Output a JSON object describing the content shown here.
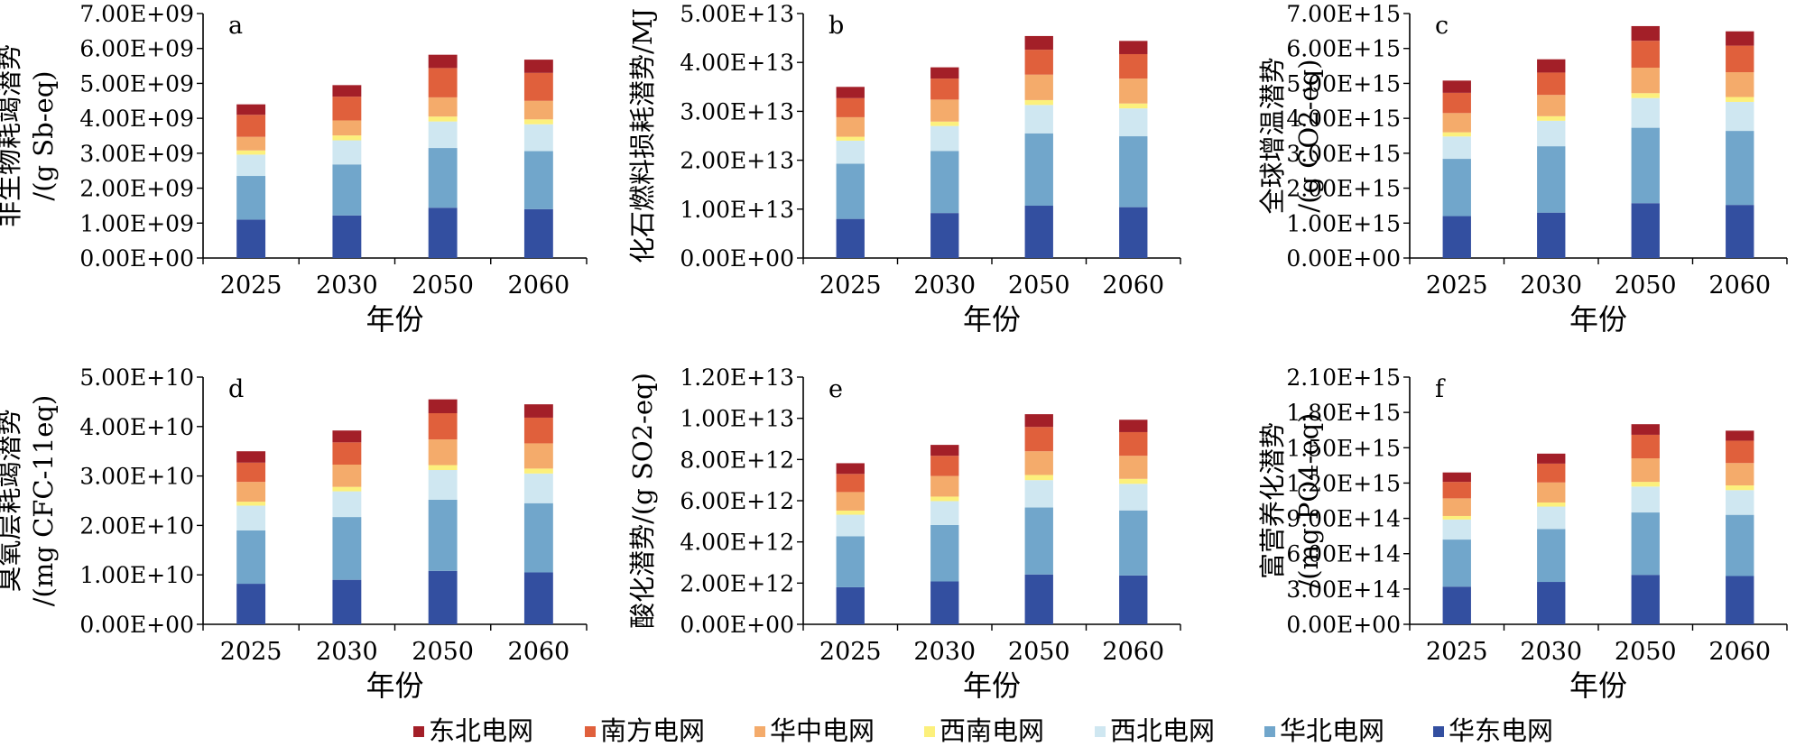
{
  "figure": {
    "x_label": "年份"
  },
  "legend": {
    "items": [
      {
        "name": "东北电网",
        "color": "#a31f28"
      },
      {
        "name": "南方电网",
        "color": "#e0603c"
      },
      {
        "name": "华中电网",
        "color": "#f4ab6b"
      },
      {
        "name": "西南电网",
        "color": "#fcf07c"
      },
      {
        "name": "西北电网",
        "color": "#cfe7f1"
      },
      {
        "name": "华北电网",
        "color": "#71a6cb"
      },
      {
        "name": "华东电网",
        "color": "#334fa0"
      }
    ]
  },
  "chart_data": [
    {
      "type": "bar",
      "stacked": true,
      "panel": "a",
      "title": "",
      "xlabel": "年份",
      "ylabel_lines": [
        "非生物耗竭潜势",
        "/(g Sb-eq)"
      ],
      "categories": [
        "2025",
        "2030",
        "2050",
        "2060"
      ],
      "ylim": [
        0,
        7000000000.0
      ],
      "ytick_labels": [
        "0.00E+00",
        "1.00E+09",
        "2.00E+09",
        "3.00E+09",
        "4.00E+09",
        "5.00E+09",
        "6.00E+09",
        "7.00E+09"
      ],
      "series": [
        {
          "name": "华东电网",
          "values": [
            1100000000.0,
            1220000000.0,
            1440000000.0,
            1400000000.0
          ]
        },
        {
          "name": "华北电网",
          "values": [
            1250000000.0,
            1460000000.0,
            1710000000.0,
            1660000000.0
          ]
        },
        {
          "name": "西北电网",
          "values": [
            610000000.0,
            690000000.0,
            760000000.0,
            770000000.0
          ]
        },
        {
          "name": "西南电网",
          "values": [
            120000000.0,
            140000000.0,
            140000000.0,
            140000000.0
          ]
        },
        {
          "name": "华中电网",
          "values": [
            390000000.0,
            430000000.0,
            550000000.0,
            530000000.0
          ]
        },
        {
          "name": "南方电网",
          "values": [
            630000000.0,
            680000000.0,
            840000000.0,
            800000000.0
          ]
        },
        {
          "name": "东北电网",
          "values": [
            300000000.0,
            330000000.0,
            380000000.0,
            380000000.0
          ]
        }
      ]
    },
    {
      "type": "bar",
      "stacked": true,
      "panel": "b",
      "title": "",
      "xlabel": "年份",
      "ylabel_lines": [
        "化石燃料损耗潜势/MJ"
      ],
      "categories": [
        "2025",
        "2030",
        "2050",
        "2060"
      ],
      "ylim": [
        0,
        50000000000000.0
      ],
      "ytick_labels": [
        "0.00E+00",
        "1.00E+13",
        "2.00E+13",
        "3.00E+13",
        "4.00E+13",
        "5.00E+13"
      ],
      "series": [
        {
          "name": "华东电网",
          "values": [
            8000000000000.0,
            9200000000000.0,
            10700000000000.0,
            10400000000000.0
          ]
        },
        {
          "name": "华北电网",
          "values": [
            11300000000000.0,
            12700000000000.0,
            14800000000000.0,
            14500000000000.0
          ]
        },
        {
          "name": "西北电网",
          "values": [
            4700000000000.0,
            5100000000000.0,
            5800000000000.0,
            5700000000000.0
          ]
        },
        {
          "name": "西南电网",
          "values": [
            800000000000.0,
            900000000000.0,
            1000000000000.0,
            1000000000000.0
          ]
        },
        {
          "name": "华中电网",
          "values": [
            4000000000000.0,
            4500000000000.0,
            5200000000000.0,
            5100000000000.0
          ]
        },
        {
          "name": "南方电网",
          "values": [
            3900000000000.0,
            4300000000000.0,
            5100000000000.0,
            5000000000000.0
          ]
        },
        {
          "name": "东北电网",
          "values": [
            2300000000000.0,
            2300000000000.0,
            2800000000000.0,
            2700000000000.0
          ]
        }
      ]
    },
    {
      "type": "bar",
      "stacked": true,
      "panel": "c",
      "title": "",
      "xlabel": "年份",
      "ylabel_lines": [
        "全球增温潜势",
        "/(g CO2-eq)"
      ],
      "categories": [
        "2025",
        "2030",
        "2050",
        "2060"
      ],
      "ylim": [
        0,
        7000000000000000.0
      ],
      "ytick_labels": [
        "0.00E+00",
        "1.00E+15",
        "2.00E+15",
        "3.00E+15",
        "4.00E+15",
        "5.00E+15",
        "6.00E+15",
        "7.00E+15"
      ],
      "series": [
        {
          "name": "华东电网",
          "values": [
            1200000000000000.0,
            1300000000000000.0,
            1570000000000000.0,
            1520000000000000.0
          ]
        },
        {
          "name": "华北电网",
          "values": [
            1640000000000000.0,
            1900000000000000.0,
            2160000000000000.0,
            2120000000000000.0
          ]
        },
        {
          "name": "西北电网",
          "values": [
            640000000000000.0,
            730000000000000.0,
            850000000000000.0,
            830000000000000.0
          ]
        },
        {
          "name": "西南电网",
          "values": [
            120000000000000.0,
            130000000000000.0,
            140000000000000.0,
            140000000000000.0
          ]
        },
        {
          "name": "华中电网",
          "values": [
            550000000000000.0,
            610000000000000.0,
            730000000000000.0,
            710000000000000.0
          ]
        },
        {
          "name": "南方电网",
          "values": [
            580000000000000.0,
            640000000000000.0,
            770000000000000.0,
            760000000000000.0
          ]
        },
        {
          "name": "东北电网",
          "values": [
            350000000000000.0,
            380000000000000.0,
            420000000000000.0,
            410000000000000.0
          ]
        }
      ]
    },
    {
      "type": "bar",
      "stacked": true,
      "panel": "d",
      "title": "",
      "xlabel": "年份",
      "ylabel_lines": [
        "臭氧层耗竭潜势",
        "/(mg CFC-11eq)"
      ],
      "categories": [
        "2025",
        "2030",
        "2050",
        "2060"
      ],
      "ylim": [
        0,
        50000000000.0
      ],
      "ytick_labels": [
        "0.00E+00",
        "1.00E+10",
        "2.00E+10",
        "3.00E+10",
        "4.00E+10",
        "5.00E+10"
      ],
      "series": [
        {
          "name": "华东电网",
          "values": [
            8200000000.0,
            9000000000.0,
            10800000000.0,
            10500000000.0
          ]
        },
        {
          "name": "华北电网",
          "values": [
            10800000000.0,
            12700000000.0,
            14400000000.0,
            14000000000.0
          ]
        },
        {
          "name": "西北电网",
          "values": [
            5000000000.0,
            5200000000.0,
            6000000000.0,
            6000000000.0
          ]
        },
        {
          "name": "西南电网",
          "values": [
            800000000.0,
            900000000.0,
            1000000000.0,
            1000000000.0
          ]
        },
        {
          "name": "华中电网",
          "values": [
            4000000000.0,
            4500000000.0,
            5200000000.0,
            5100000000.0
          ]
        },
        {
          "name": "南方电网",
          "values": [
            3900000000.0,
            4500000000.0,
            5300000000.0,
            5200000000.0
          ]
        },
        {
          "name": "东北电网",
          "values": [
            2300000000.0,
            2400000000.0,
            2800000000.0,
            2700000000.0
          ]
        }
      ]
    },
    {
      "type": "bar",
      "stacked": true,
      "panel": "e",
      "title": "",
      "xlabel": "年份",
      "ylabel_lines": [
        "酸化潜势/(g SO2-eq)"
      ],
      "categories": [
        "2025",
        "2030",
        "2050",
        "2060"
      ],
      "ylim": [
        0,
        12000000000000.0
      ],
      "ytick_labels": [
        "0.00E+00",
        "2.00E+12",
        "4.00E+12",
        "6.00E+12",
        "8.00E+12",
        "1.00E+13",
        "1.20E+13"
      ],
      "series": [
        {
          "name": "华东电网",
          "values": [
            1800000000000.0,
            2080000000000.0,
            2420000000000.0,
            2370000000000.0
          ]
        },
        {
          "name": "华北电网",
          "values": [
            2470000000000.0,
            2740000000000.0,
            3250000000000.0,
            3160000000000.0
          ]
        },
        {
          "name": "西北电网",
          "values": [
            1050000000000.0,
            1160000000000.0,
            1330000000000.0,
            1290000000000.0
          ]
        },
        {
          "name": "西南电网",
          "values": [
            200000000000.0,
            220000000000.0,
            250000000000.0,
            240000000000.0
          ]
        },
        {
          "name": "华中电网",
          "values": [
            900000000000.0,
            1000000000000.0,
            1150000000000.0,
            1120000000000.0
          ]
        },
        {
          "name": "南方电网",
          "values": [
            880000000000.0,
            980000000000.0,
            1180000000000.0,
            1150000000000.0
          ]
        },
        {
          "name": "东北电网",
          "values": [
            520000000000.0,
            530000000000.0,
            620000000000.0,
            600000000000.0
          ]
        }
      ]
    },
    {
      "type": "bar",
      "stacked": true,
      "panel": "f",
      "title": "",
      "xlabel": "年份",
      "ylabel_lines": [
        "富营养化潜势",
        "/(mg PO4-eq)"
      ],
      "categories": [
        "2025",
        "2030",
        "2050",
        "2060"
      ],
      "ylim": [
        0,
        2100000000000000.0
      ],
      "ytick_labels": [
        "0.00E+00",
        "3.00E+14",
        "6.00E+14",
        "9.00E+14",
        "1.20E+15",
        "1.50E+15",
        "1.80E+15",
        "2.10E+15"
      ],
      "series": [
        {
          "name": "华东电网",
          "values": [
            320000000000000.0,
            360000000000000.0,
            420000000000000.0,
            410000000000000.0
          ]
        },
        {
          "name": "华北电网",
          "values": [
            400000000000000.0,
            450000000000000.0,
            530000000000000.0,
            520000000000000.0
          ]
        },
        {
          "name": "西北电网",
          "values": [
            170000000000000.0,
            190000000000000.0,
            220000000000000.0,
            210000000000000.0
          ]
        },
        {
          "name": "西南电网",
          "values": [
            30000000000000.0,
            35000000000000.0,
            40000000000000.0,
            40000000000000.0
          ]
        },
        {
          "name": "华中电网",
          "values": [
            150000000000000.0,
            170000000000000.0,
            200000000000000.0,
            190000000000000.0
          ]
        },
        {
          "name": "南方电网",
          "values": [
            140000000000000.0,
            160000000000000.0,
            200000000000000.0,
            190000000000000.0
          ]
        },
        {
          "name": "东北电网",
          "values": [
            80000000000000.0,
            85000000000000.0,
            90000000000000.0,
            85000000000000.0
          ]
        }
      ]
    }
  ]
}
